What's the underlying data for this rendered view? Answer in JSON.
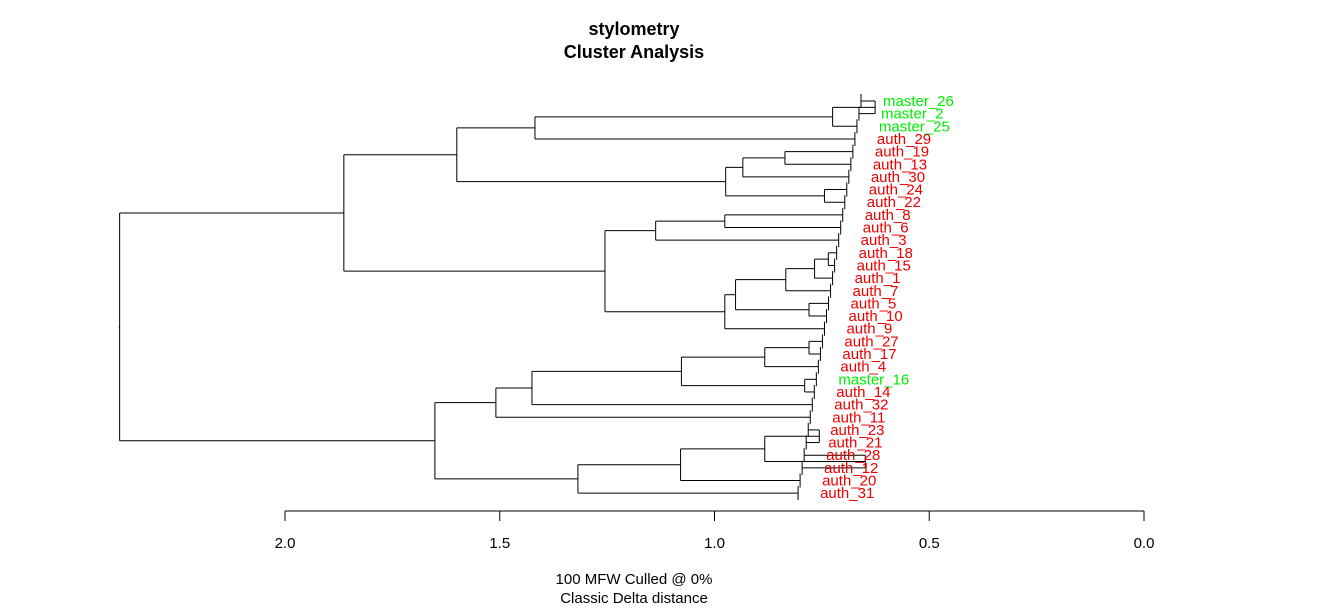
{
  "chart_data": {
    "type": "dendrogram",
    "title": "stylometry",
    "subtitle": "Cluster Analysis",
    "xlabel_line1": "100 MFW  Culled @ 0%",
    "xlabel_line2": "Classic Delta distance",
    "xlim": [
      2.0,
      0.0
    ],
    "xticks": [
      "2.0",
      "1.5",
      "1.0",
      "0.5",
      "0.0"
    ],
    "tick_values": [
      2.0,
      1.5,
      1.0,
      0.5,
      0.0
    ],
    "colors": {
      "master": "#00ee00",
      "auth": "#ee0000",
      "lines": "#000000"
    },
    "leaves": [
      {
        "label": "master_26",
        "group": "master"
      },
      {
        "label": "master_2",
        "group": "master"
      },
      {
        "label": "master_25",
        "group": "master"
      },
      {
        "label": "auth_29",
        "group": "auth"
      },
      {
        "label": "auth_19",
        "group": "auth"
      },
      {
        "label": "auth_13",
        "group": "auth"
      },
      {
        "label": "auth_30",
        "group": "auth"
      },
      {
        "label": "auth_24",
        "group": "auth"
      },
      {
        "label": "auth_22",
        "group": "auth"
      },
      {
        "label": "auth_8",
        "group": "auth"
      },
      {
        "label": "auth_6",
        "group": "auth"
      },
      {
        "label": "auth_3",
        "group": "auth"
      },
      {
        "label": "auth_18",
        "group": "auth"
      },
      {
        "label": "auth_15",
        "group": "auth"
      },
      {
        "label": "auth_1",
        "group": "auth"
      },
      {
        "label": "auth_7",
        "group": "auth"
      },
      {
        "label": "auth_5",
        "group": "auth"
      },
      {
        "label": "auth_10",
        "group": "auth"
      },
      {
        "label": "auth_9",
        "group": "auth"
      },
      {
        "label": "auth_27",
        "group": "auth"
      },
      {
        "label": "auth_17",
        "group": "auth"
      },
      {
        "label": "auth_4",
        "group": "auth"
      },
      {
        "label": "master_16",
        "group": "master"
      },
      {
        "label": "auth_14",
        "group": "auth"
      },
      {
        "label": "auth_32",
        "group": "auth"
      },
      {
        "label": "auth_11",
        "group": "auth"
      },
      {
        "label": "auth_23",
        "group": "auth"
      },
      {
        "label": "auth_21",
        "group": "auth"
      },
      {
        "label": "auth_28",
        "group": "auth"
      },
      {
        "label": "auth_12",
        "group": "auth"
      },
      {
        "label": "auth_20",
        "group": "auth"
      },
      {
        "label": "auth_31",
        "group": "auth"
      }
    ],
    "merges": [
      {
        "a": 0,
        "b": 1,
        "height": 0.626
      },
      {
        "a": "m0",
        "b": 2,
        "height": 0.725
      },
      {
        "a": "m1",
        "b": 3,
        "height": 1.418
      },
      {
        "a": 4,
        "b": 5,
        "height": 0.836
      },
      {
        "a": "m3",
        "b": 6,
        "height": 0.934
      },
      {
        "a": 7,
        "b": 8,
        "height": 0.744
      },
      {
        "a": "m4",
        "b": "m5",
        "height": 0.974
      },
      {
        "a": "m2",
        "b": "m6",
        "height": 1.6
      },
      {
        "a": 9,
        "b": 10,
        "height": 0.976
      },
      {
        "a": "m8",
        "b": 11,
        "height": 1.137
      },
      {
        "a": 12,
        "b": 13,
        "height": 0.735
      },
      {
        "a": "m10",
        "b": 14,
        "height": 0.767
      },
      {
        "a": "m11",
        "b": 15,
        "height": 0.834
      },
      {
        "a": 16,
        "b": 17,
        "height": 0.78
      },
      {
        "a": "m12",
        "b": "m13",
        "height": 0.951
      },
      {
        "a": "m14",
        "b": 18,
        "height": 0.976
      },
      {
        "a": "m9",
        "b": "m15",
        "height": 1.255
      },
      {
        "a": "m7",
        "b": "m16",
        "height": 1.863
      },
      {
        "a": 19,
        "b": 20,
        "height": 0.78
      },
      {
        "a": "m18",
        "b": 21,
        "height": 0.883
      },
      {
        "a": 22,
        "b": 23,
        "height": 0.79
      },
      {
        "a": "m19",
        "b": "m20",
        "height": 1.077
      },
      {
        "a": "m21",
        "b": 24,
        "height": 1.425
      },
      {
        "a": "m22",
        "b": 25,
        "height": 1.509
      },
      {
        "a": 26,
        "b": 27,
        "height": 0.756
      },
      {
        "a": 28,
        "b": 29,
        "height": 0.649
      },
      {
        "a": "m24",
        "b": "m25",
        "height": 0.883
      },
      {
        "a": "m26",
        "b": 30,
        "height": 1.079
      },
      {
        "a": "m27",
        "b": 31,
        "height": 1.318
      },
      {
        "a": "m23",
        "b": "m28",
        "height": 1.651
      },
      {
        "a": "m17",
        "b": "m29",
        "height": 2.385
      }
    ]
  }
}
